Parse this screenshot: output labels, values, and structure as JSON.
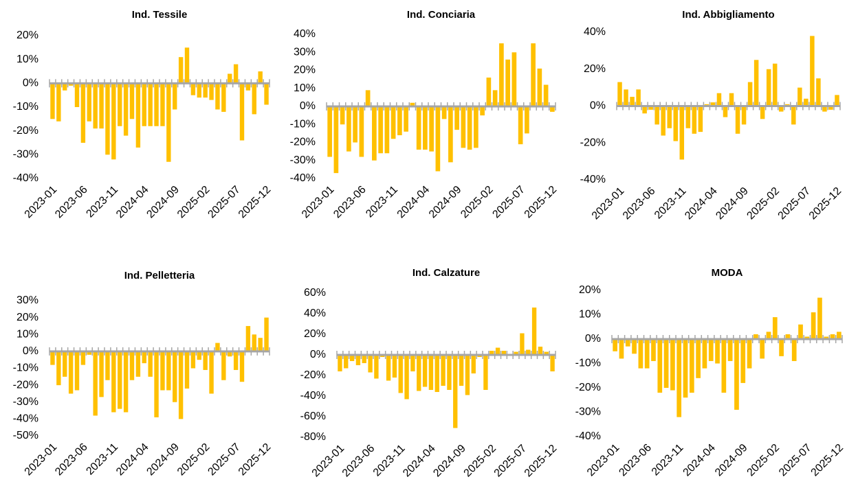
{
  "chart_data": [
    {
      "type": "bar",
      "title": "Ind. Tessile",
      "color": "#ffc000",
      "categories": [
        "2023-01",
        null,
        null,
        null,
        null,
        "2023-06",
        null,
        null,
        null,
        null,
        "2023-11",
        null,
        null,
        null,
        null,
        "2024-04",
        null,
        null,
        null,
        null,
        "2024-09",
        null,
        null,
        null,
        null,
        "2025-02",
        null,
        null,
        null,
        null,
        "2025-07",
        null,
        null,
        null,
        null,
        "2025-12"
      ],
      "values": [
        -15,
        -16,
        -3,
        -1,
        -10,
        -25,
        -16,
        -19,
        -19,
        -30,
        -32,
        -18,
        -22,
        -15,
        -27,
        -18,
        -18,
        -18,
        -18,
        -33,
        -11,
        11,
        15,
        -5,
        -6,
        -6,
        -7,
        -11,
        -12,
        4,
        8,
        -24,
        -3,
        -13,
        5,
        -9
      ],
      "ylim": [
        -40,
        20
      ],
      "yticks": [
        {
          "value": -40,
          "label": "-40%"
        },
        {
          "value": -30,
          "label": "-30%"
        },
        {
          "value": -20,
          "label": "-20%"
        },
        {
          "value": -10,
          "label": "-10%"
        },
        {
          "value": 0,
          "label": "0%"
        },
        {
          "value": 10,
          "label": "10%"
        },
        {
          "value": 20,
          "label": "20%"
        }
      ]
    },
    {
      "type": "bar",
      "title": "Ind. Conciaria",
      "color": "#ffc000",
      "categories": [
        "2023-01",
        null,
        null,
        null,
        null,
        "2023-06",
        null,
        null,
        null,
        null,
        "2023-11",
        null,
        null,
        null,
        null,
        "2024-04",
        null,
        null,
        null,
        null,
        "2024-09",
        null,
        null,
        null,
        null,
        "2025-02",
        null,
        null,
        null,
        null,
        "2025-07",
        null,
        null,
        null,
        null,
        "2025-12"
      ],
      "values": [
        -28,
        -37,
        -10,
        -25,
        -20,
        -28,
        9,
        -30,
        -26,
        -26,
        -18,
        -16,
        -14,
        2,
        -24,
        -24,
        -25,
        -36,
        -7,
        -31,
        -13,
        -23,
        -24,
        -23,
        -5,
        16,
        9,
        35,
        26,
        30,
        -21,
        -15,
        35,
        21,
        12,
        -3
      ],
      "ylim": [
        -40,
        40
      ],
      "yticks": [
        {
          "value": -40,
          "label": "-40%"
        },
        {
          "value": -30,
          "label": "-30%"
        },
        {
          "value": -20,
          "label": "-20%"
        },
        {
          "value": -10,
          "label": "-10%"
        },
        {
          "value": 0,
          "label": "0%"
        },
        {
          "value": 10,
          "label": "10%"
        },
        {
          "value": 20,
          "label": "20%"
        },
        {
          "value": 30,
          "label": "30%"
        },
        {
          "value": 40,
          "label": "40%"
        }
      ]
    },
    {
      "type": "bar",
      "title": "Ind. Abbigliamento",
      "color": "#ffc000",
      "categories": [
        "2023-01",
        null,
        null,
        null,
        null,
        "2023-06",
        null,
        null,
        null,
        null,
        "2023-11",
        null,
        null,
        null,
        null,
        "2024-04",
        null,
        null,
        null,
        null,
        "2024-09",
        null,
        null,
        null,
        null,
        "2025-02",
        null,
        null,
        null,
        null,
        "2025-07",
        null,
        null,
        null,
        null,
        "2025-12"
      ],
      "values": [
        13,
        9,
        5,
        9,
        -4,
        -2,
        -10,
        -16,
        -12,
        -19,
        -29,
        -12,
        -15,
        -14,
        1,
        2,
        7,
        -6,
        7,
        -15,
        -10,
        13,
        25,
        -7,
        20,
        23,
        -3,
        1,
        -10,
        10,
        4,
        38,
        15,
        -3,
        -2,
        6
      ],
      "ylim": [
        -40,
        40
      ],
      "yticks": [
        {
          "value": -40,
          "label": "-40%"
        },
        {
          "value": -20,
          "label": "-20%"
        },
        {
          "value": 0,
          "label": "0%"
        },
        {
          "value": 20,
          "label": "20%"
        },
        {
          "value": 40,
          "label": "40%"
        }
      ]
    },
    {
      "type": "bar",
      "title": "Ind. Pelletteria",
      "color": "#ffc000",
      "categories": [
        "2023-01",
        null,
        null,
        null,
        null,
        "2023-06",
        null,
        null,
        null,
        null,
        "2023-11",
        null,
        null,
        null,
        null,
        "2024-04",
        null,
        null,
        null,
        null,
        "2024-09",
        null,
        null,
        null,
        null,
        "2025-02",
        null,
        null,
        null,
        null,
        "2025-07",
        null,
        null,
        null,
        null,
        "2025-12"
      ],
      "values": [
        -8,
        -20,
        -15,
        -25,
        -23,
        -8,
        -2,
        -38,
        -27,
        -17,
        -36,
        -34,
        -36,
        -17,
        -15,
        -7,
        -15,
        -39,
        -23,
        -23,
        -30,
        -40,
        -22,
        -10,
        -5,
        -11,
        -25,
        5,
        -17,
        -3,
        -11,
        -18,
        15,
        10,
        8,
        20
      ],
      "ylim": [
        -50,
        30
      ],
      "yticks": [
        {
          "value": -50,
          "label": "-50%"
        },
        {
          "value": -40,
          "label": "-40%"
        },
        {
          "value": -30,
          "label": "-30%"
        },
        {
          "value": -20,
          "label": "-20%"
        },
        {
          "value": -10,
          "label": "-10%"
        },
        {
          "value": 0,
          "label": "0%"
        },
        {
          "value": 10,
          "label": "10%"
        },
        {
          "value": 20,
          "label": "20%"
        },
        {
          "value": 30,
          "label": "30%"
        }
      ]
    },
    {
      "type": "bar",
      "title": "Ind. Calzature",
      "color": "#ffc000",
      "categories": [
        "2023-01",
        null,
        null,
        null,
        null,
        "2023-06",
        null,
        null,
        null,
        null,
        "2023-11",
        null,
        null,
        null,
        null,
        "2024-04",
        null,
        null,
        null,
        null,
        "2024-09",
        null,
        null,
        null,
        null,
        "2025-02",
        null,
        null,
        null,
        null,
        "2025-07",
        null,
        null,
        null,
        null,
        "2025-12"
      ],
      "values": [
        -16,
        -13,
        -6,
        -10,
        -8,
        -17,
        -23,
        -2,
        -25,
        -22,
        -37,
        -43,
        -16,
        -35,
        -31,
        -34,
        -36,
        -30,
        -34,
        -71,
        -30,
        -39,
        -18,
        -2,
        -34,
        4,
        7,
        4,
        1,
        3,
        21,
        5,
        46,
        8,
        3,
        -16
      ],
      "ylim": [
        -80,
        60
      ],
      "yticks": [
        {
          "value": -80,
          "label": "-80%"
        },
        {
          "value": -60,
          "label": "-60%"
        },
        {
          "value": -40,
          "label": "-40%"
        },
        {
          "value": -20,
          "label": "-20%"
        },
        {
          "value": 0,
          "label": "0%"
        },
        {
          "value": 20,
          "label": "20%"
        },
        {
          "value": 40,
          "label": "40%"
        },
        {
          "value": 60,
          "label": "60%"
        }
      ]
    },
    {
      "type": "bar",
      "title": "MODA",
      "color": "#ffc000",
      "categories": [
        "2023-01",
        null,
        null,
        null,
        null,
        "2023-06",
        null,
        null,
        null,
        null,
        "2023-11",
        null,
        null,
        null,
        null,
        "2024-04",
        null,
        null,
        null,
        null,
        "2024-09",
        null,
        null,
        null,
        null,
        "2025-02",
        null,
        null,
        null,
        null,
        "2025-07",
        null,
        null,
        null,
        null,
        "2025-12"
      ],
      "values": [
        -5,
        -8,
        -3,
        -6,
        -12,
        -12,
        -9,
        -22,
        -20,
        -21,
        -32,
        -24,
        -22,
        -16,
        -12,
        -9,
        -10,
        -22,
        -9,
        -29,
        -18,
        -12,
        2,
        -8,
        3,
        9,
        -7,
        2,
        -9,
        6,
        1,
        11,
        17,
        1,
        2,
        3
      ],
      "ylim": [
        -40,
        20
      ],
      "yticks": [
        {
          "value": -40,
          "label": "-40%"
        },
        {
          "value": -30,
          "label": "-30%"
        },
        {
          "value": -20,
          "label": "-20%"
        },
        {
          "value": -10,
          "label": "-10%"
        },
        {
          "value": 0,
          "label": "0%"
        },
        {
          "value": 10,
          "label": "10%"
        },
        {
          "value": 20,
          "label": "20%"
        }
      ]
    }
  ]
}
